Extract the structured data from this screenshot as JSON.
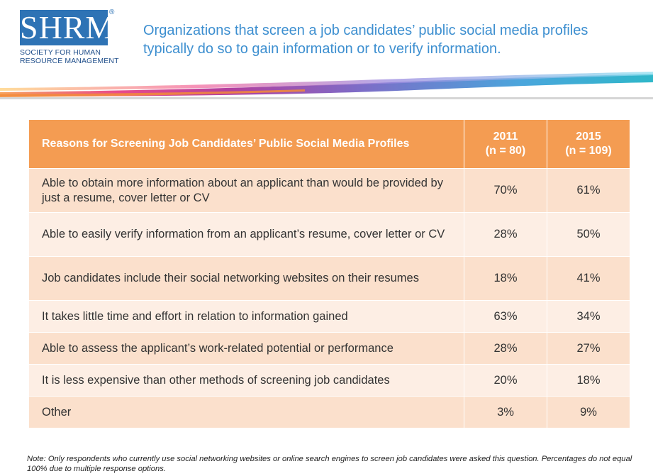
{
  "logo": {
    "text": "SHRM",
    "registered": "®",
    "line1": "SOCIETY FOR HUMAN",
    "line2": "RESOURCE MANAGEMENT"
  },
  "headline": "Organizations that screen a job candidates’ public social media profiles typically do so to gain information or to verify information.",
  "colors": {
    "header_orange": "#f49c52",
    "row_dark": "#fbe0cc",
    "row_light": "#fdeee4",
    "headline_blue": "#3d8fd0",
    "logo_blue": "#2e73b5"
  },
  "chart_data": {
    "type": "table",
    "header": {
      "reason": "Reasons for Screening Job Candidates’ Public Social Media Profiles",
      "col2011_year": "2011",
      "col2011_n": "(n = 80)",
      "col2015_year": "2015",
      "col2015_n": "(n = 109)"
    },
    "rows": [
      {
        "reason": "Able to obtain more information about an applicant than would be provided by just a resume, cover letter or CV",
        "v2011": "70%",
        "v2015": "61%"
      },
      {
        "reason": "Able to easily verify information from an applicant’s resume, cover letter or CV",
        "v2011": "28%",
        "v2015": "50%"
      },
      {
        "reason": "Job candidates include their social networking websites on their resumes",
        "v2011": "18%",
        "v2015": "41%"
      },
      {
        "reason": "It takes little time and effort in relation to information gained",
        "v2011": "63%",
        "v2015": "34%"
      },
      {
        "reason": "Able to assess the applicant’s work-related potential or performance",
        "v2011": "28%",
        "v2015": "27%"
      },
      {
        "reason": "It is less expensive than other methods of screening job candidates",
        "v2011": "20%",
        "v2015": "18%"
      },
      {
        "reason": "Other",
        "v2011": "3%",
        "v2015": "9%"
      }
    ]
  },
  "note": "Note: Only respondents who currently use social networking websites or online search engines to screen job candidates were asked this question. Percentages do not equal 100% due to multiple response options."
}
